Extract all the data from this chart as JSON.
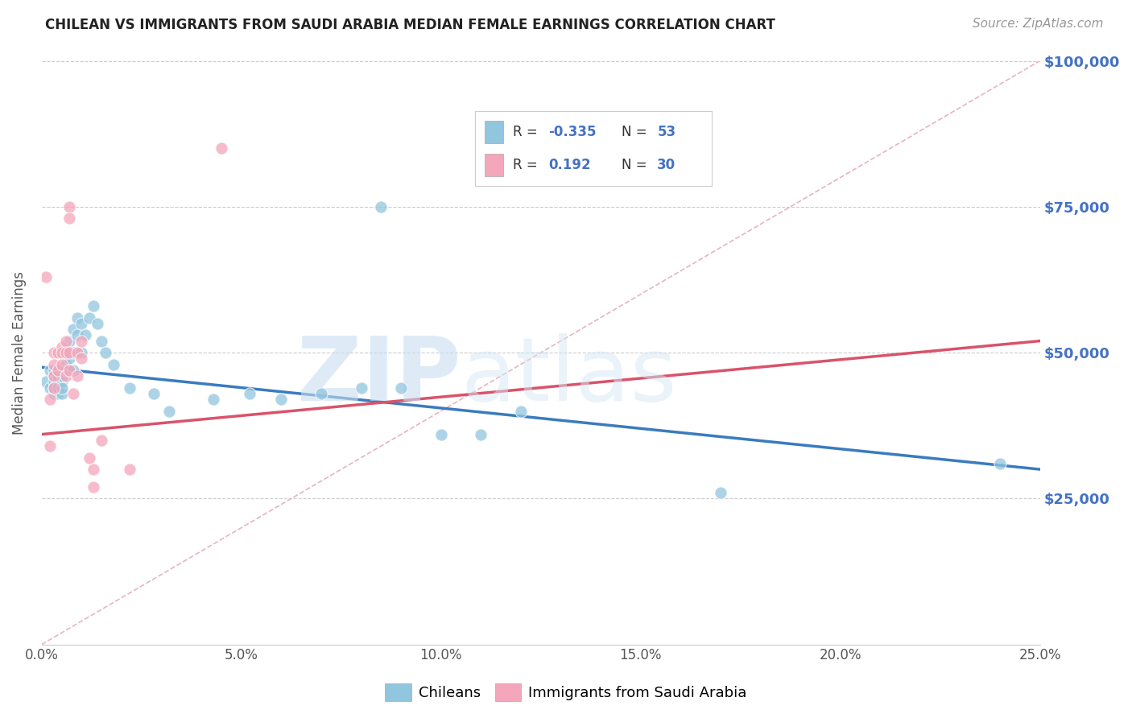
{
  "title": "CHILEAN VS IMMIGRANTS FROM SAUDI ARABIA MEDIAN FEMALE EARNINGS CORRELATION CHART",
  "source": "Source: ZipAtlas.com",
  "xlabel_ticks": [
    "0.0%",
    "5.0%",
    "10.0%",
    "15.0%",
    "20.0%",
    "25.0%"
  ],
  "xlabel_vals": [
    0.0,
    0.05,
    0.1,
    0.15,
    0.2,
    0.25
  ],
  "ylabel": "Median Female Earnings",
  "ylabel_ticks": [
    0,
    25000,
    50000,
    75000,
    100000
  ],
  "ylabel_labels": [
    "",
    "$25,000",
    "$50,000",
    "$75,000",
    "$100,000"
  ],
  "xlim": [
    0.0,
    0.25
  ],
  "ylim": [
    0,
    100000
  ],
  "blue_color": "#92c5de",
  "pink_color": "#f4a6bb",
  "blue_line_color": "#3a7bbf",
  "pink_line_color": "#d9536a",
  "diagonal_color": "#cccccc",
  "watermark_zip": "ZIP",
  "watermark_atlas": "atlas",
  "chileans_x": [
    0.001,
    0.002,
    0.002,
    0.003,
    0.003,
    0.003,
    0.003,
    0.003,
    0.004,
    0.004,
    0.004,
    0.004,
    0.004,
    0.005,
    0.005,
    0.005,
    0.005,
    0.005,
    0.006,
    0.006,
    0.006,
    0.007,
    0.007,
    0.007,
    0.008,
    0.008,
    0.008,
    0.009,
    0.009,
    0.01,
    0.01,
    0.011,
    0.012,
    0.013,
    0.014,
    0.015,
    0.016,
    0.018,
    0.022,
    0.028,
    0.032,
    0.043,
    0.052,
    0.06,
    0.07,
    0.08,
    0.085,
    0.09,
    0.1,
    0.11,
    0.12,
    0.17,
    0.24
  ],
  "chileans_y": [
    45000,
    47000,
    44000,
    46000,
    43000,
    47000,
    45000,
    44000,
    47000,
    45000,
    43000,
    44000,
    46000,
    47000,
    45000,
    43000,
    44000,
    46000,
    50000,
    48000,
    47000,
    52000,
    49000,
    47000,
    54000,
    50000,
    47000,
    56000,
    53000,
    55000,
    50000,
    53000,
    56000,
    58000,
    55000,
    52000,
    50000,
    48000,
    44000,
    43000,
    40000,
    42000,
    43000,
    42000,
    43000,
    44000,
    75000,
    44000,
    36000,
    36000,
    40000,
    26000,
    31000
  ],
  "saudi_x": [
    0.001,
    0.002,
    0.002,
    0.003,
    0.003,
    0.003,
    0.003,
    0.004,
    0.004,
    0.005,
    0.005,
    0.005,
    0.006,
    0.006,
    0.006,
    0.007,
    0.007,
    0.007,
    0.007,
    0.008,
    0.009,
    0.009,
    0.01,
    0.01,
    0.012,
    0.013,
    0.013,
    0.015,
    0.022,
    0.045
  ],
  "saudi_y": [
    63000,
    34000,
    42000,
    46000,
    50000,
    48000,
    44000,
    50000,
    47000,
    51000,
    50000,
    48000,
    52000,
    50000,
    46000,
    47000,
    75000,
    73000,
    50000,
    43000,
    50000,
    46000,
    49000,
    52000,
    32000,
    30000,
    27000,
    35000,
    30000,
    85000
  ],
  "blue_line_x0": 0.0,
  "blue_line_y0": 47500,
  "blue_line_x1": 0.25,
  "blue_line_y1": 30000,
  "pink_line_x0": 0.0,
  "pink_line_y0": 36000,
  "pink_line_x1": 0.25,
  "pink_line_y1": 52000
}
